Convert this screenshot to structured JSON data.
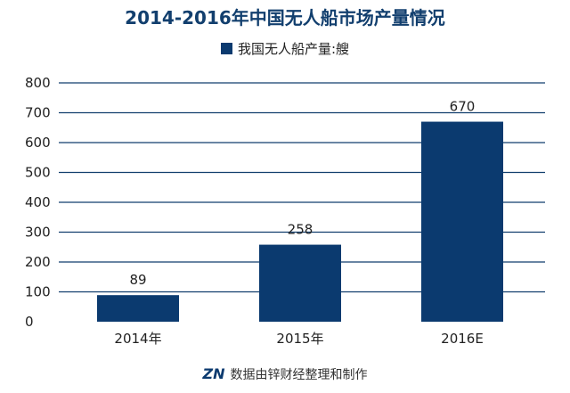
{
  "title": "2014-2016年中国无人船市场产量情况",
  "footer": {
    "logo": "ZN",
    "text": "数据由锌财经整理和制作"
  },
  "colors": {
    "bar": "#0b3a6f",
    "title": "#123f6e",
    "grid": "#123f6e"
  },
  "chart_data": {
    "type": "bar",
    "categories": [
      "2014年",
      "2015年",
      "2016E"
    ],
    "series": [
      {
        "name": "我国无人船产量:艘",
        "values": [
          89,
          258,
          670
        ]
      }
    ],
    "ylim": [
      0,
      800
    ],
    "yticks": [
      0,
      100,
      200,
      300,
      400,
      500,
      600,
      700,
      800
    ],
    "xlabel": "",
    "ylabel": "",
    "grid": true,
    "legend_position": "top-center"
  }
}
